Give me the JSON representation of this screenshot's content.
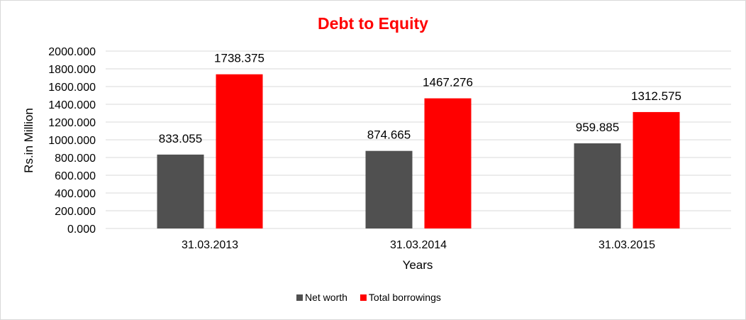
{
  "chart_data": {
    "type": "bar",
    "title": "Debt to Equity",
    "xlabel": "Years",
    "ylabel": "Rs.in Million",
    "categories": [
      "31.03.2013",
      "31.03.2014",
      "31.03.2015"
    ],
    "series": [
      {
        "name": "Net worth",
        "color": "#505050",
        "values": [
          833.055,
          874.665,
          959.885
        ],
        "labels": [
          "833.055",
          "874.665",
          "959.885"
        ]
      },
      {
        "name": "Total borrowings",
        "color": "#ff0000",
        "values": [
          1738.375,
          1467.276,
          1312.575
        ],
        "labels": [
          "1738.375",
          "1467.276",
          "1312.575"
        ]
      }
    ],
    "ylim": [
      0,
      2000
    ],
    "yticks": [
      0,
      200,
      400,
      600,
      800,
      1000,
      1200,
      1400,
      1600,
      1800,
      2000
    ],
    "ytick_labels": [
      "0.000",
      "200.000",
      "400.000",
      "600.000",
      "800.000",
      "1000.000",
      "1200.000",
      "1400.000",
      "1600.000",
      "1800.000",
      "2000.000"
    ],
    "grid": true,
    "legend": "bottom",
    "title_color": "#ff0000",
    "gridline_color": "#d9d9d9"
  }
}
